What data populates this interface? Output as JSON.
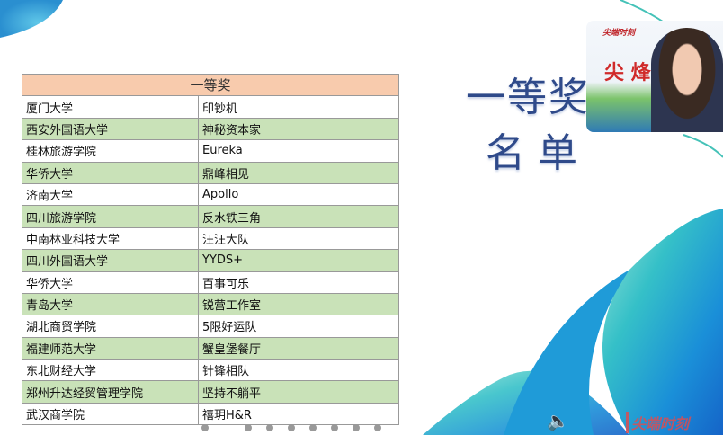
{
  "table": {
    "header": "一等奖",
    "rows": [
      {
        "school": "厦门大学",
        "team": "印钞机"
      },
      {
        "school": "西安外国语大学",
        "team": "神秘资本家"
      },
      {
        "school": "桂林旅游学院",
        "team": "Eureka"
      },
      {
        "school": "华侨大学",
        "team": "鼎峰相见"
      },
      {
        "school": "济南大学",
        "team": "Apollo"
      },
      {
        "school": "四川旅游学院",
        "team": "反水铁三角"
      },
      {
        "school": "中南林业科技大学",
        "team": "汪汪大队"
      },
      {
        "school": "四川外国语大学",
        "team": "YYDS+"
      },
      {
        "school": "华侨大学",
        "team": "百事可乐"
      },
      {
        "school": "青岛大学",
        "team": "锐营工作室"
      },
      {
        "school": "湖北商贸学院",
        "team": "5限好运队"
      },
      {
        "school": "福建师范大学",
        "team": "蟹皇堡餐厅"
      },
      {
        "school": "东北财经大学",
        "team": "针锋相队"
      },
      {
        "school": "郑州升达经贸管理学院",
        "team": "坚持不躺平"
      },
      {
        "school": "武汉商学院",
        "team": "禧玥H&R"
      }
    ],
    "colors": {
      "header": "#f8cbad",
      "stripe": "#c9e2b8"
    }
  },
  "slide_title": {
    "line1": "一等奖",
    "line2": "名单"
  },
  "webcam": {
    "logo": "尖端时刻",
    "banner": "尖 烽"
  },
  "watermark": "尖端时刻",
  "icons": {
    "speaker": "speaker-icon"
  }
}
